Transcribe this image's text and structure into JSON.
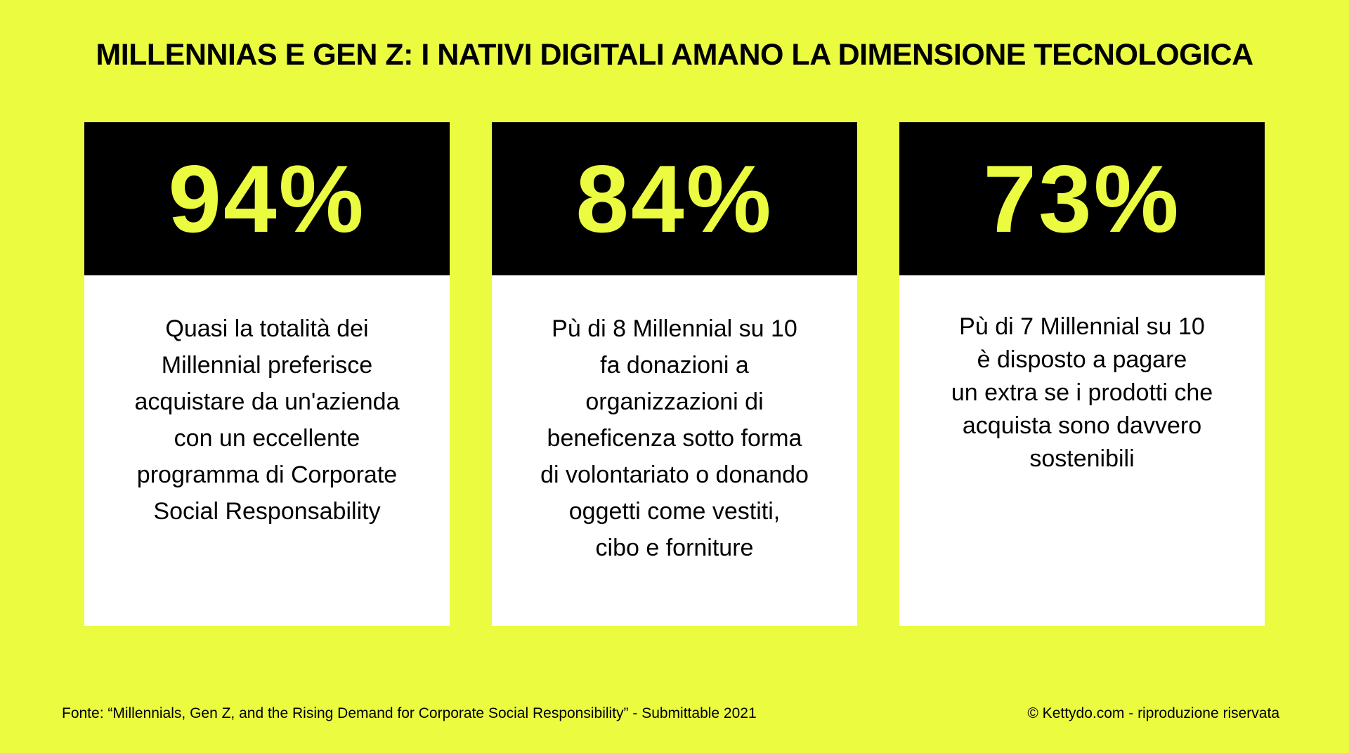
{
  "title": "MILLENNIAS E GEN Z: I NATIVI DIGITALI AMANO LA DIMENSIONE TECNOLOGICA",
  "cards": [
    {
      "stat": "94%",
      "lines": [
        "Quasi la totalità dei",
        "Millennial preferisce",
        "acquistare da un'azienda",
        "con un eccellente",
        "programma di Corporate",
        "Social Responsability"
      ]
    },
    {
      "stat": "84%",
      "lines": [
        "Pù di 8 Millennial su 10",
        "fa donazioni a",
        "organizzazioni di",
        "beneficenza sotto forma",
        "di volontariato o donando",
        "oggetti come vestiti,",
        "cibo e forniture"
      ]
    },
    {
      "stat": "73%",
      "lines": [
        "Pù di 7 Millennial su 10",
        "è disposto a pagare",
        "un extra se i prodotti che",
        "acquista sono davvero",
        "sostenibili"
      ]
    }
  ],
  "footer": {
    "source": "Fonte: “Millennials, Gen Z, and the Rising Demand for Corporate Social Responsibility”  - Submittable 2021",
    "copyright": "© Kettydo.com - riproduzione riservata"
  },
  "colors": {
    "background": "#ebfb3f",
    "card_header": "#000000",
    "stat_text": "#ebfb3f",
    "card_body": "#ffffff"
  }
}
